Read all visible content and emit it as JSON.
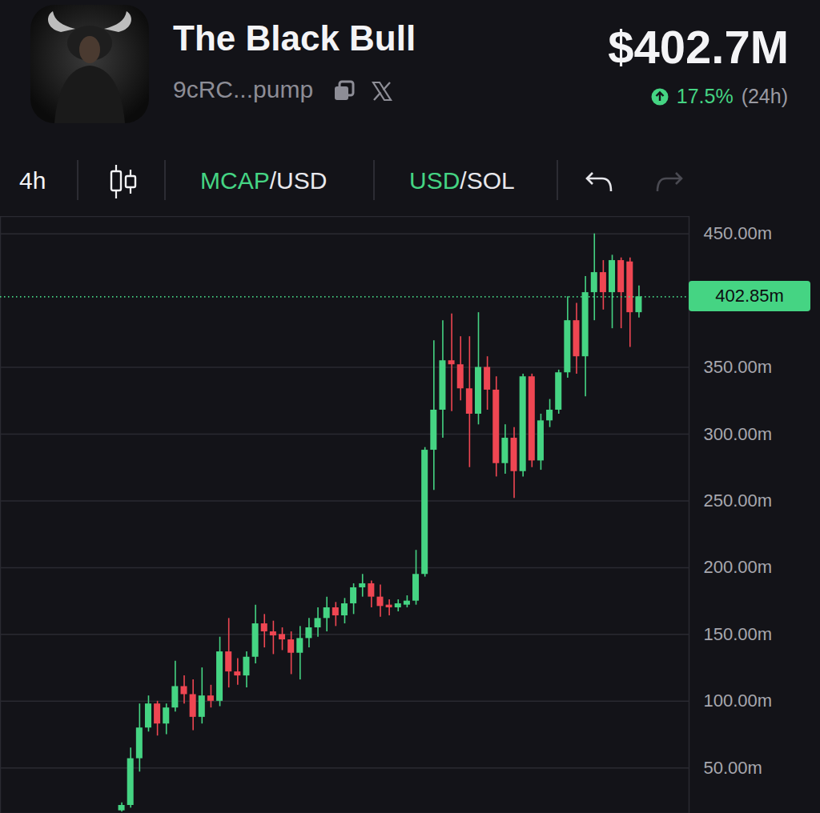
{
  "chart_data": {
    "type": "candlestick",
    "title": "The Black Bull",
    "subtitle": "9cRC...pump",
    "market_cap": {
      "value": 402.7,
      "label": "$402.7M"
    },
    "change_24h": {
      "value": 17.5,
      "label": "17.5%",
      "period": "(24h)"
    },
    "interval": "4h",
    "toggles": [
      {
        "active": "MCAP",
        "inactive": "/USD"
      },
      {
        "active": "USD",
        "inactive": "/SOL"
      }
    ],
    "categories": [
      null,
      null,
      null,
      null,
      null,
      null,
      null,
      null,
      null,
      null,
      null,
      null,
      null,
      null,
      null,
      null,
      null,
      null,
      null,
      null,
      null,
      null,
      null,
      null,
      null,
      null,
      null,
      null,
      null,
      null,
      null,
      null,
      null,
      null,
      null,
      null,
      null,
      null,
      null,
      null,
      null,
      null,
      null,
      null,
      null,
      null,
      null,
      null,
      null,
      null,
      null,
      null,
      null,
      null,
      null,
      null,
      null,
      null,
      null
    ],
    "open": [
      18,
      22,
      57,
      80,
      98,
      83,
      95,
      111,
      105,
      88,
      104,
      100,
      137,
      122,
      119,
      133,
      158,
      152,
      150,
      146,
      136,
      147,
      155,
      162,
      170,
      164,
      173,
      185,
      188,
      178,
      172,
      170,
      172,
      175,
      195,
      288,
      318,
      355,
      352,
      334,
      315,
      350,
      333,
      278,
      297,
      272,
      343,
      280,
      310,
      318,
      346,
      385,
      358,
      406,
      421,
      406,
      430,
      429,
      391
    ],
    "high": [
      24,
      65,
      98,
      104,
      100,
      98,
      130,
      119,
      116,
      125,
      112,
      148,
      162,
      132,
      137,
      172,
      165,
      160,
      155,
      152,
      156,
      162,
      170,
      178,
      174,
      177,
      188,
      195,
      190,
      187,
      176,
      176,
      179,
      213,
      290,
      370,
      385,
      390,
      373,
      373,
      391,
      358,
      343,
      307,
      305,
      345,
      345,
      315,
      326,
      348,
      403,
      398,
      418,
      450,
      430,
      434,
      432,
      432,
      411
    ],
    "low": [
      17,
      20,
      47,
      77,
      74,
      75,
      92,
      98,
      78,
      83,
      95,
      96,
      110,
      112,
      110,
      128,
      140,
      135,
      138,
      120,
      116,
      140,
      148,
      152,
      156,
      158,
      165,
      178,
      170,
      163,
      164,
      167,
      170,
      172,
      193,
      258,
      297,
      317,
      325,
      275,
      307,
      318,
      268,
      270,
      252,
      268,
      275,
      273,
      305,
      315,
      342,
      345,
      328,
      385,
      393,
      379,
      379,
      365,
      387
    ],
    "close": [
      22,
      57,
      80,
      98,
      83,
      95,
      111,
      105,
      88,
      104,
      100,
      137,
      122,
      119,
      133,
      158,
      152,
      149,
      146,
      136,
      147,
      155,
      162,
      170,
      164,
      173,
      185,
      188,
      178,
      171,
      170,
      173,
      175,
      195,
      288,
      318,
      355,
      352,
      334,
      315,
      350,
      333,
      278,
      297,
      272,
      343,
      280,
      310,
      318,
      346,
      385,
      358,
      406,
      421,
      406,
      430,
      406,
      391,
      402.85
    ],
    "last_price": {
      "value": 402.85,
      "label": "402.85m"
    },
    "ylim": [
      16,
      463
    ],
    "yticks": [
      {
        "value": 50,
        "label": "50.00m"
      },
      {
        "value": 100,
        "label": "100.00m"
      },
      {
        "value": 150,
        "label": "150.00m"
      },
      {
        "value": 200,
        "label": "200.00m"
      },
      {
        "value": 250,
        "label": "250.00m"
      },
      {
        "value": 300,
        "label": "300.00m"
      },
      {
        "value": 350,
        "label": "350.00m"
      },
      {
        "value": 450,
        "label": "450.00m"
      }
    ],
    "grid": true,
    "tick_labels": "y"
  }
}
